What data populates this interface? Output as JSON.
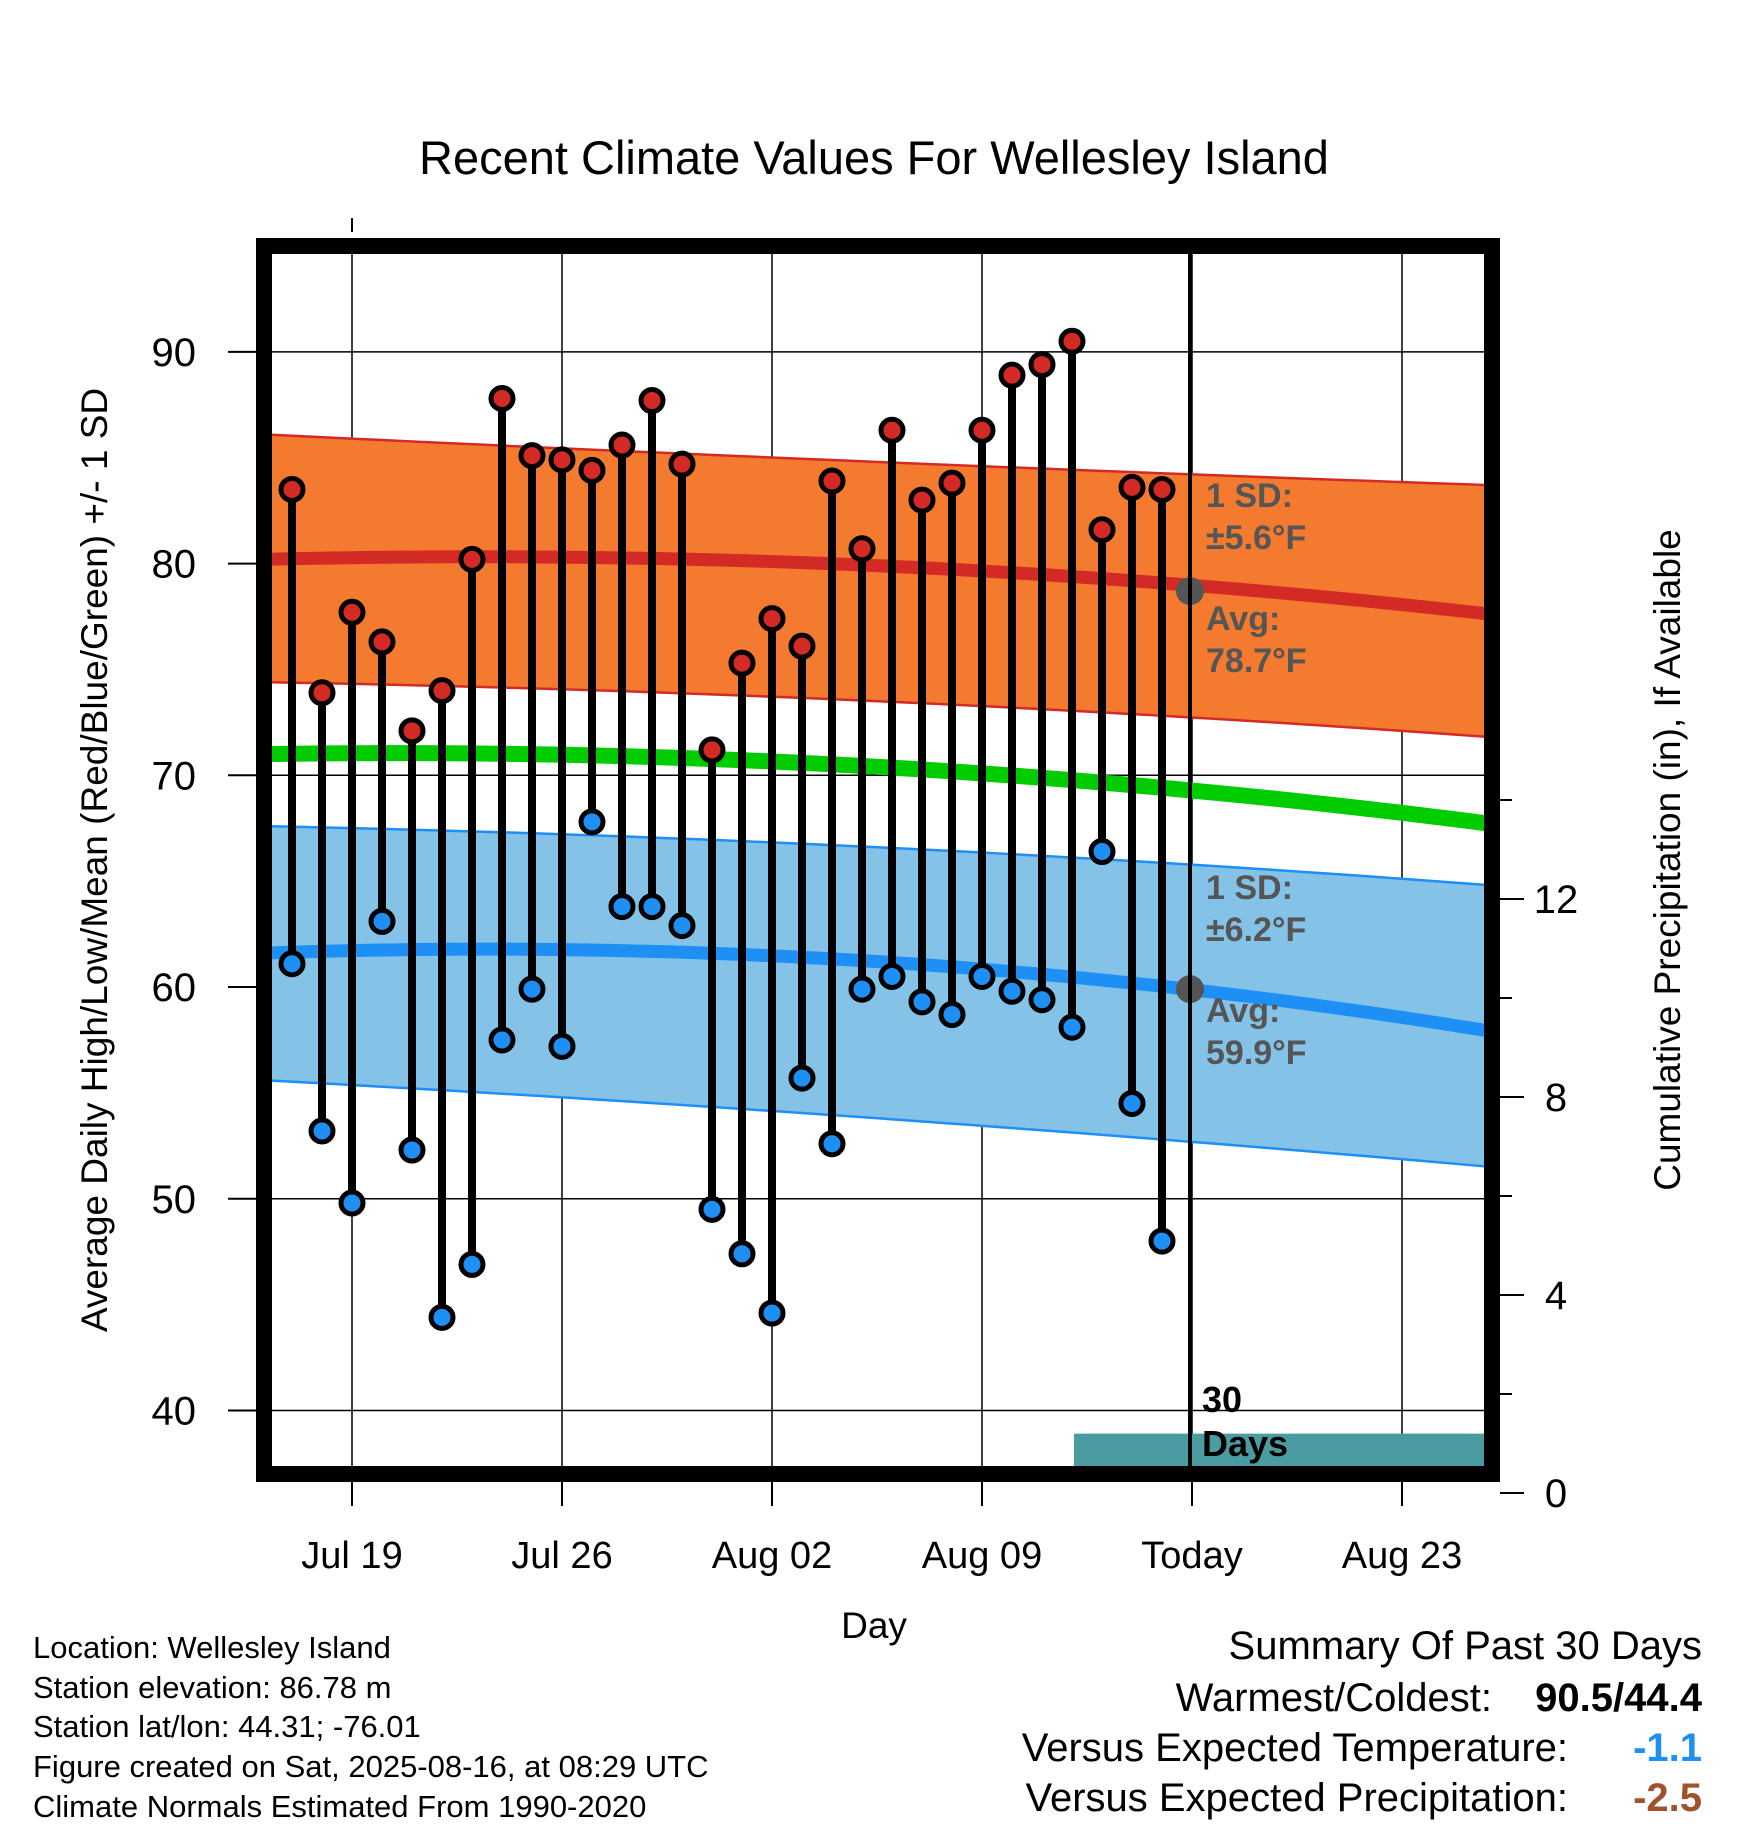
{
  "chart_data": {
    "type": "line",
    "title": "Recent Climate Values For Wellesley Island",
    "xlabel": "Day",
    "ylabel": "Average Daily High/Low/Mean (Red/Blue/Green) +/- 1 SD",
    "y2label": "Cumulative Precipitation (in), If Available",
    "ylim": [
      37,
      95
    ],
    "y2lim": [
      0,
      24
    ],
    "yticks": [
      "40",
      "50",
      "60",
      "70",
      "80",
      "90"
    ],
    "y2ticks": [
      "0",
      "4",
      "8",
      "12"
    ],
    "xticks": [
      "Jul 19",
      "Jul 26",
      "Aug 02",
      "Aug 09",
      "Today",
      "Aug 23"
    ],
    "today_label": "30\nDays",
    "days": [
      "Jul 17",
      "Jul 18",
      "Jul 19",
      "Jul 20",
      "Jul 21",
      "Jul 22",
      "Jul 23",
      "Jul 24",
      "Jul 25",
      "Jul 26",
      "Jul 27",
      "Jul 28",
      "Jul 29",
      "Jul 30",
      "Jul 31",
      "Aug 01",
      "Aug 02",
      "Aug 03",
      "Aug 04",
      "Aug 05",
      "Aug 06",
      "Aug 07",
      "Aug 08",
      "Aug 09",
      "Aug 10",
      "Aug 11",
      "Aug 12",
      "Aug 13",
      "Aug 14",
      "Aug 15"
    ],
    "series": [
      {
        "name": "High",
        "values": [
          83.5,
          73.9,
          77.7,
          76.3,
          72.1,
          74.0,
          80.2,
          87.8,
          85.1,
          84.9,
          84.4,
          85.6,
          87.7,
          84.7,
          71.2,
          75.3,
          77.4,
          76.1,
          83.9,
          80.7,
          86.3,
          83.0,
          83.8,
          86.3,
          88.9,
          89.4,
          90.5,
          81.6,
          83.6,
          83.5
        ]
      },
      {
        "name": "Low",
        "values": [
          61.1,
          53.2,
          49.8,
          63.1,
          52.3,
          44.4,
          46.9,
          57.5,
          59.9,
          57.2,
          67.8,
          63.8,
          63.8,
          62.9,
          49.5,
          47.4,
          44.6,
          55.7,
          52.6,
          59.9,
          60.5,
          59.3,
          58.7,
          60.5,
          59.8,
          59.4,
          58.1,
          66.4,
          54.5,
          48.0
        ]
      }
    ],
    "normals": {
      "high": {
        "avg": [
          80.2,
          79.9,
          77.6
        ],
        "upper": [
          86.1,
          84.8,
          83.7
        ],
        "lower": [
          74.4,
          73.5,
          71.8
        ]
      },
      "low": {
        "avg": [
          61.6,
          61.2,
          57.9
        ],
        "upper": [
          67.6,
          66.6,
          64.8
        ],
        "lower": [
          55.6,
          53.8,
          51.5
        ]
      },
      "mean": {
        "avg": [
          71.0,
          70.4,
          67.7
        ]
      }
    },
    "precipitation": {
      "values": [
        0,
        0,
        0,
        0,
        0,
        0,
        0,
        0,
        0,
        0,
        0.1,
        0.1,
        0.1,
        0.1,
        0.1,
        0.1,
        0.1,
        0.1,
        0.1,
        0.1,
        0.1,
        0.1,
        0.1,
        0.1,
        0.1,
        0.1,
        0.1,
        1.2,
        1.2,
        1.2,
        1.2,
        1.2,
        1.2,
        1.2,
        1.2,
        1.2,
        1.2,
        1.2,
        1.2,
        1.2,
        1.2
      ]
    },
    "annotations": {
      "high_sd": "1 SD:\n±5.6°F",
      "high_avg": "Avg:\n78.7°F",
      "low_sd": "1 SD:\n±6.2°F",
      "low_avg": "Avg:\n59.9°F"
    },
    "today_values": {
      "high_avg": 78.7,
      "low_avg": 59.9
    },
    "colors": {
      "high_band": "#f47a30",
      "high_line": "#d42a26",
      "low_band": "#84c2e8",
      "low_line": "#1e8ff5",
      "mean_line": "#00cc00",
      "high_marker": "#d42a26",
      "low_marker": "#1e8ff5",
      "precip": "#4a9ca0",
      "annotation": "#555555"
    },
    "grid": true
  },
  "footer": {
    "location": "Location: Wellesley Island",
    "elevation": "Station elevation: 86.78 m",
    "latlon": "Station lat/lon: 44.31; -76.01",
    "created": "Figure created on Sat, 2025-08-16, at 08:29 UTC",
    "normals": "Climate Normals Estimated From 1990-2020"
  },
  "summary": {
    "title": "Summary Of Past 30 Days",
    "warmest_label": "Warmest/Coldest:",
    "warmest_value": "90.5/44.4",
    "temp_label": "Versus Expected Temperature:",
    "temp_value": "-1.1",
    "temp_color": "#1e8ff5",
    "precip_label": "Versus Expected Precipitation:",
    "precip_value": "-2.5",
    "precip_color": "#a0522d"
  }
}
